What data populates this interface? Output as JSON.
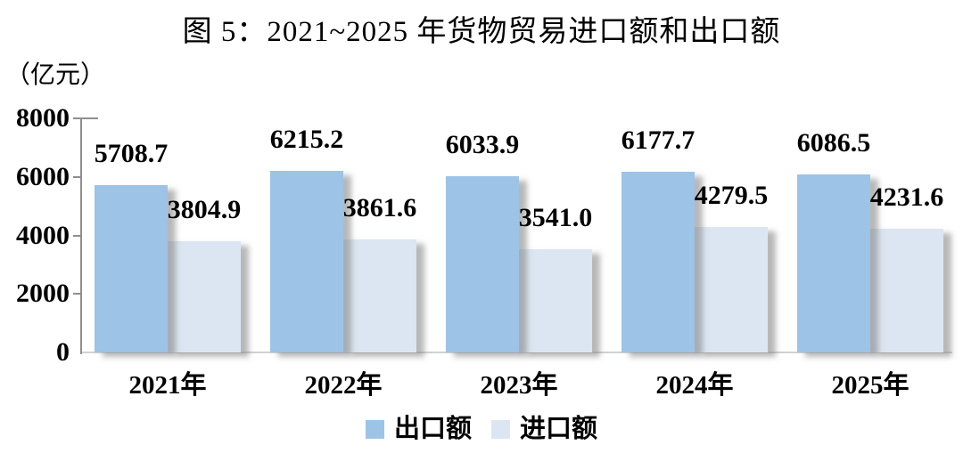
{
  "title": "图 5：2021~2025 年货物贸易进口额和出口额",
  "y_axis_unit": "（亿元）",
  "chart_data": {
    "type": "bar",
    "title": "图 5：2021~2025 年货物贸易进口额和出口额",
    "ylabel": "（亿元）",
    "xlabel": "",
    "categories": [
      "2021年",
      "2022年",
      "2023年",
      "2024年",
      "2025年"
    ],
    "series": [
      {
        "key": "export",
        "name": "出口额",
        "color": "#9dc3e6",
        "values": [
          5708.7,
          6215.2,
          6033.9,
          6177.7,
          6086.5
        ]
      },
      {
        "key": "import",
        "name": "进口额",
        "color": "#dce6f2",
        "values": [
          3804.9,
          3861.6,
          3541.0,
          4279.5,
          4231.6
        ]
      }
    ],
    "ylim": [
      0,
      8000
    ],
    "yticks": [
      0,
      2000,
      4000,
      6000,
      8000
    ],
    "grid": false,
    "legend_position": "bottom",
    "value_label_decimals": 1,
    "axis_color": "#8f8f8f",
    "baseline_color": "#d2d2d2"
  }
}
